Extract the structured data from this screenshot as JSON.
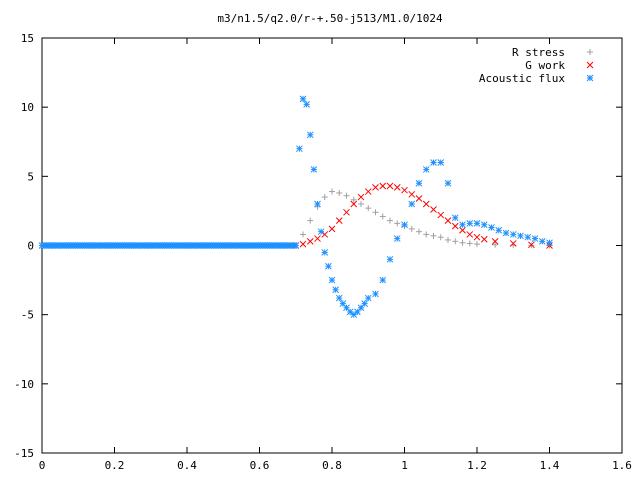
{
  "chart_data": {
    "type": "scatter",
    "title": "m3/n1.5/q2.0/r-+.50-j513/M1.0/1024",
    "xlabel": "",
    "ylabel": "",
    "xlim": [
      0,
      1.6
    ],
    "ylim": [
      -15,
      15
    ],
    "x_ticks": [
      "0",
      "0.2",
      "0.4",
      "0.6",
      "0.8",
      "1",
      "1.2",
      "1.4",
      "1.6"
    ],
    "y_ticks": [
      "15",
      "10",
      "5",
      "0",
      "-5",
      "-10",
      "-15"
    ],
    "grid": false,
    "legend_position": "top-right",
    "series": [
      {
        "name": "R stress",
        "marker": "plus",
        "color": "#a0a0a0",
        "x": [
          0.7,
          0.72,
          0.74,
          0.76,
          0.78,
          0.8,
          0.82,
          0.84,
          0.86,
          0.88,
          0.9,
          0.92,
          0.94,
          0.96,
          0.98,
          1.0,
          1.02,
          1.04,
          1.06,
          1.08,
          1.1,
          1.12,
          1.14,
          1.16,
          1.18,
          1.2,
          1.25,
          1.3,
          1.35,
          1.4
        ],
        "y": [
          0.0,
          0.8,
          1.8,
          2.8,
          3.5,
          3.9,
          3.8,
          3.6,
          3.3,
          3.0,
          2.7,
          2.4,
          2.1,
          1.8,
          1.6,
          1.4,
          1.2,
          1.0,
          0.8,
          0.7,
          0.6,
          0.4,
          0.3,
          0.2,
          0.15,
          0.1,
          0.05,
          0.02,
          0.01,
          0.0
        ]
      },
      {
        "name": "G work",
        "marker": "cross",
        "color": "#ff0000",
        "x": [
          0.7,
          0.72,
          0.74,
          0.76,
          0.78,
          0.8,
          0.82,
          0.84,
          0.86,
          0.88,
          0.9,
          0.92,
          0.94,
          0.96,
          0.98,
          1.0,
          1.02,
          1.04,
          1.06,
          1.08,
          1.1,
          1.12,
          1.14,
          1.16,
          1.18,
          1.2,
          1.22,
          1.25,
          1.3,
          1.35,
          1.4
        ],
        "y": [
          0.0,
          0.1,
          0.3,
          0.5,
          0.8,
          1.2,
          1.8,
          2.4,
          3.0,
          3.5,
          3.9,
          4.2,
          4.3,
          4.3,
          4.2,
          4.0,
          3.7,
          3.4,
          3.0,
          2.6,
          2.2,
          1.8,
          1.4,
          1.1,
          0.8,
          0.6,
          0.45,
          0.3,
          0.15,
          0.05,
          0.0
        ]
      },
      {
        "name": "Acoustic flux",
        "marker": "star",
        "color": "#1e90ff",
        "x": [
          0.7,
          0.71,
          0.72,
          0.73,
          0.74,
          0.75,
          0.76,
          0.77,
          0.78,
          0.79,
          0.8,
          0.81,
          0.82,
          0.83,
          0.84,
          0.85,
          0.86,
          0.87,
          0.88,
          0.89,
          0.9,
          0.92,
          0.94,
          0.96,
          0.98,
          1.0,
          1.02,
          1.04,
          1.06,
          1.08,
          1.1,
          1.12,
          1.14,
          1.16,
          1.18,
          1.2,
          1.22,
          1.24,
          1.26,
          1.28,
          1.3,
          1.32,
          1.34,
          1.36,
          1.38,
          1.4
        ],
        "y": [
          0.0,
          7.0,
          10.6,
          10.2,
          8.0,
          5.5,
          3.0,
          1.0,
          -0.5,
          -1.5,
          -2.5,
          -3.2,
          -3.8,
          -4.2,
          -4.5,
          -4.8,
          -5.0,
          -4.8,
          -4.5,
          -4.2,
          -3.8,
          -3.5,
          -2.5,
          -1.0,
          0.5,
          1.5,
          3.0,
          4.5,
          5.5,
          6.0,
          6.0,
          4.5,
          2.0,
          1.5,
          1.6,
          1.6,
          1.5,
          1.3,
          1.1,
          0.9,
          0.8,
          0.7,
          0.6,
          0.5,
          0.3,
          0.2
        ]
      }
    ]
  }
}
